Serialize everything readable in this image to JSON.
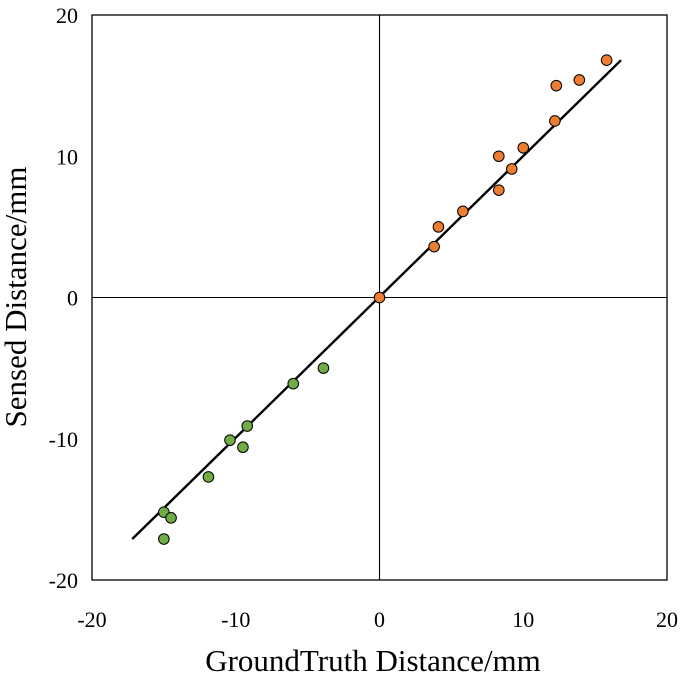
{
  "chart_data": {
    "type": "scatter",
    "title": "",
    "xlabel": "GroundTruth Distance/mm",
    "ylabel": "Sensed Distance/mm",
    "xlim": [
      -20,
      20
    ],
    "ylim": [
      -20,
      20
    ],
    "x_ticks": [
      -20,
      -10,
      0,
      10,
      20
    ],
    "y_ticks": [
      -20,
      -10,
      0,
      10,
      20
    ],
    "x_tick_labels": [
      "-20",
      "-10",
      "0",
      "10",
      "20"
    ],
    "y_tick_labels": [
      "-20",
      "-10",
      "0",
      "10",
      "20"
    ],
    "grid": false,
    "zero_lines": true,
    "legend": "none",
    "colors": {
      "series_negative": "#70ad47",
      "series_positive": "#ed7d31",
      "marker_edge": "#000000",
      "fit_line": "#000000",
      "axis": "#000000"
    },
    "series": [
      {
        "color_key": "series_negative",
        "points": [
          [
            -15.0,
            -15.2
          ],
          [
            -14.5,
            -15.6
          ],
          [
            -15.0,
            -17.1
          ],
          [
            -11.9,
            -12.7
          ],
          [
            -10.4,
            -10.1
          ],
          [
            -9.5,
            -10.6
          ],
          [
            -9.2,
            -9.1
          ],
          [
            -6.0,
            -6.1
          ],
          [
            -3.9,
            -5.0
          ]
        ]
      },
      {
        "color_key": "series_positive",
        "points": [
          [
            0.0,
            0.0
          ],
          [
            3.8,
            3.6
          ],
          [
            4.1,
            5.0
          ],
          [
            5.8,
            6.1
          ],
          [
            8.3,
            7.6
          ],
          [
            8.3,
            10.0
          ],
          [
            9.2,
            9.1
          ],
          [
            10.0,
            10.6
          ],
          [
            12.2,
            12.5
          ],
          [
            12.3,
            15.0
          ],
          [
            13.9,
            15.4
          ],
          [
            15.8,
            16.8
          ]
        ]
      }
    ],
    "fit_line": {
      "x": [
        -17.2,
        16.8
      ],
      "y": [
        -17.1,
        16.8
      ]
    }
  }
}
